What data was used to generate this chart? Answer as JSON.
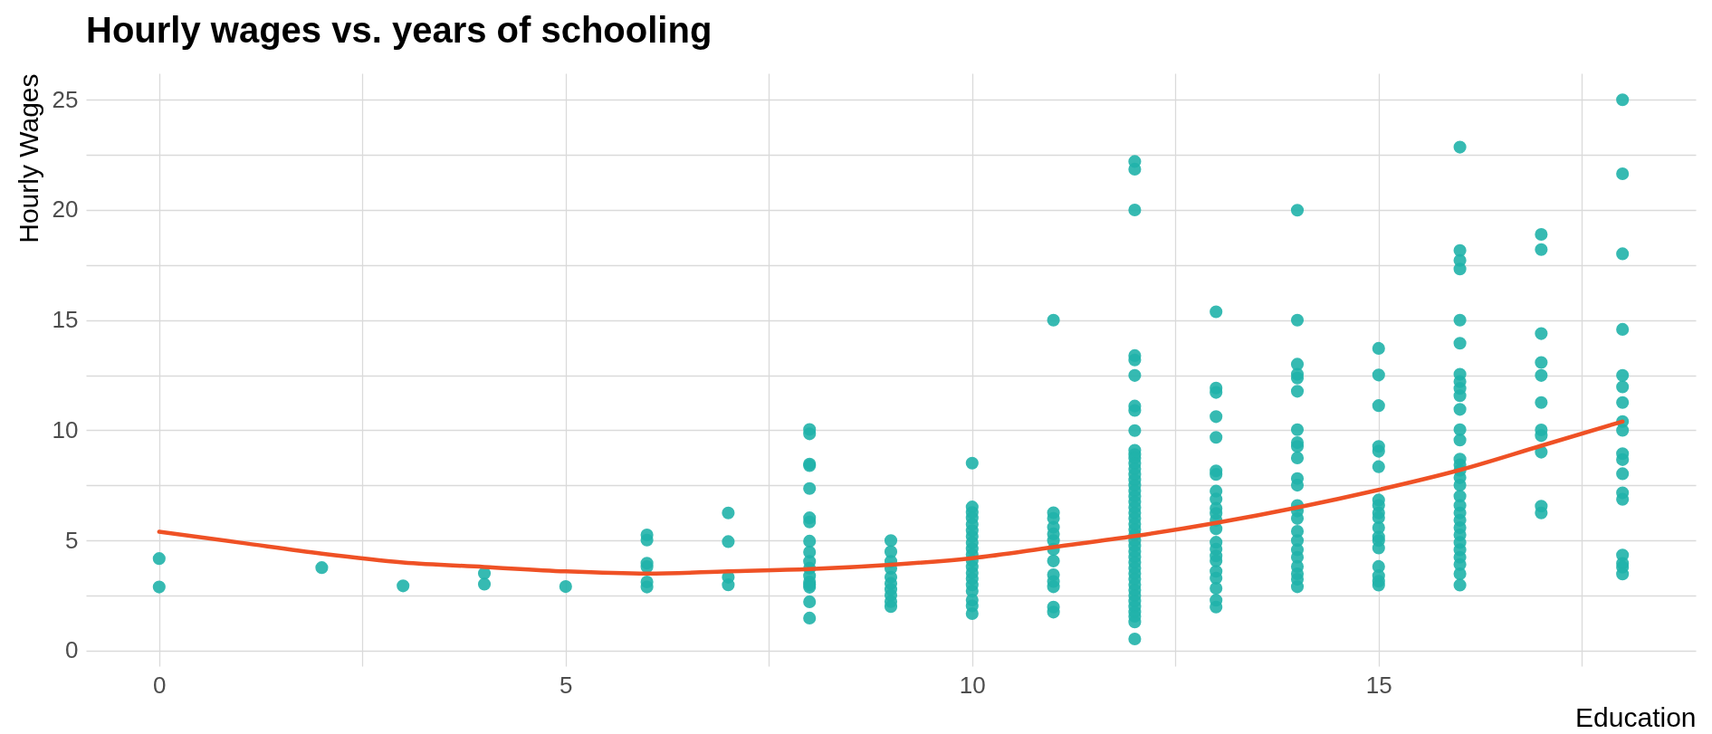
{
  "chart_data": {
    "type": "scatter",
    "title": "Hourly wages vs. years of schooling",
    "xlabel": "Education",
    "ylabel": "Hourly Wages",
    "xlim": [
      -0.9,
      18.9
    ],
    "ylim": [
      -0.7,
      26.2
    ],
    "xticks": [
      0,
      {
        "value": 2.5,
        "label": null
      },
      5,
      {
        "value": 7.5,
        "label": null
      },
      10,
      {
        "value": 12.5,
        "label": null
      },
      15,
      {
        "value": 17.5,
        "label": null
      }
    ],
    "yticks": [
      0,
      {
        "value": 2.5,
        "label": null
      },
      5,
      {
        "value": 7.5,
        "label": null
      },
      10,
      {
        "value": 12.5,
        "label": null
      },
      15,
      {
        "value": 17.5,
        "label": null
      },
      20,
      {
        "value": 22.5,
        "label": null
      },
      25
    ],
    "grid": true,
    "series": [
      {
        "marker": "circle",
        "color": "#20b2aa",
        "x": [
          0,
          0,
          2,
          3,
          4,
          4,
          5,
          6,
          6,
          6,
          6,
          6,
          6,
          7,
          7,
          7,
          7,
          8,
          8,
          8,
          8,
          8,
          8,
          8,
          8,
          8,
          8,
          8,
          8,
          8,
          8,
          8,
          8,
          8,
          9,
          9,
          9,
          9,
          9,
          9,
          9,
          9,
          9,
          9,
          10,
          10,
          10,
          10,
          10,
          10,
          10,
          10,
          10,
          10,
          10,
          10,
          10,
          10,
          10,
          10,
          10,
          10,
          10,
          11,
          11,
          11,
          11,
          11,
          11,
          11,
          11,
          11,
          11,
          11,
          11,
          11,
          12,
          12,
          12,
          12,
          12,
          12,
          12,
          12,
          12,
          12,
          12,
          12,
          12,
          12,
          12,
          12,
          12,
          12,
          12,
          12,
          12,
          12,
          12,
          12,
          12,
          12,
          12,
          12,
          12,
          12,
          12,
          12,
          12,
          12,
          12,
          12,
          12,
          12,
          12,
          12,
          12,
          12,
          12,
          13,
          13,
          13,
          13,
          13,
          13,
          13,
          13,
          13,
          13,
          13,
          13,
          13,
          13,
          13,
          13,
          13,
          13,
          13,
          13,
          13,
          13,
          14,
          14,
          14,
          14,
          14,
          14,
          14,
          14,
          14,
          14,
          14,
          14,
          14,
          14,
          14,
          14,
          14,
          14,
          14,
          14,
          14,
          14,
          14,
          15,
          15,
          15,
          15,
          15,
          15,
          15,
          15,
          15,
          15,
          15,
          15,
          15,
          15,
          15,
          15,
          15,
          15,
          16,
          16,
          16,
          16,
          16,
          16,
          16,
          16,
          16,
          16,
          16,
          16,
          16,
          16,
          16,
          16,
          16,
          16,
          16,
          16,
          16,
          16,
          16,
          16,
          16,
          16,
          16,
          16,
          16,
          16,
          17,
          17,
          17,
          17,
          17,
          17,
          17,
          17,
          17,
          17,
          17,
          18,
          18,
          18,
          18,
          18,
          18,
          18,
          18,
          18,
          18,
          18,
          18,
          18,
          18,
          18,
          18,
          18,
          18
        ],
        "values": [
          4.18,
          2.89,
          3.77,
          2.94,
          3.51,
          3.02,
          2.91,
          5.25,
          5.02,
          3.97,
          3.81,
          3.12,
          2.89,
          6.25,
          4.95,
          3.33,
          2.99,
          10.04,
          9.84,
          8.47,
          8.4,
          7.36,
          6.03,
          5.84,
          4.97,
          4.47,
          4.05,
          3.74,
          3.4,
          3.12,
          2.99,
          2.88,
          2.22,
          1.48,
          5.0,
          4.49,
          4.05,
          3.74,
          3.33,
          3.05,
          2.78,
          2.51,
          2.23,
          2.0,
          8.51,
          6.52,
          6.27,
          6.03,
          5.73,
          5.45,
          5.18,
          4.9,
          4.63,
          4.36,
          4.08,
          3.81,
          3.53,
          3.26,
          2.99,
          2.71,
          2.3,
          2.03,
          1.68,
          15.0,
          6.26,
          6.0,
          5.6,
          5.3,
          5.0,
          4.6,
          4.07,
          3.45,
          3.14,
          2.9,
          1.98,
          1.75,
          22.2,
          21.85,
          20.0,
          13.39,
          13.19,
          12.49,
          11.1,
          10.9,
          9.99,
          9.09,
          8.9,
          8.75,
          8.5,
          8.25,
          8.0,
          7.75,
          7.5,
          7.25,
          7.0,
          6.75,
          6.5,
          6.25,
          6.0,
          5.75,
          5.5,
          5.25,
          5.0,
          4.75,
          4.5,
          4.25,
          4.0,
          3.75,
          3.5,
          3.25,
          3.0,
          2.75,
          2.5,
          2.25,
          2.0,
          1.75,
          1.56,
          1.3,
          0.53,
          15.38,
          11.92,
          11.72,
          10.62,
          9.68,
          8.16,
          8.0,
          7.24,
          6.88,
          6.46,
          6.23,
          5.92,
          5.53,
          4.92,
          4.61,
          4.3,
          4.07,
          3.6,
          3.29,
          2.83,
          2.29,
          1.98,
          19.99,
          15.0,
          13.0,
          12.54,
          12.37,
          11.77,
          10.03,
          9.44,
          9.27,
          8.75,
          7.81,
          7.51,
          6.59,
          6.34,
          6.0,
          5.42,
          5.0,
          4.58,
          4.24,
          3.82,
          3.49,
          3.24,
          2.9,
          13.72,
          12.51,
          11.12,
          9.27,
          9.05,
          8.35,
          6.84,
          6.59,
          6.25,
          6.04,
          5.58,
          5.16,
          5.0,
          4.66,
          3.82,
          3.4,
          3.15,
          2.98,
          22.85,
          18.16,
          17.71,
          17.32,
          15.0,
          13.95,
          12.54,
          12.21,
          11.9,
          11.57,
          10.95,
          10.03,
          9.56,
          8.69,
          8.43,
          8.18,
          7.85,
          7.51,
          7.01,
          6.59,
          6.25,
          5.92,
          5.58,
          5.25,
          4.91,
          4.58,
          4.24,
          3.91,
          3.49,
          2.98,
          18.89,
          18.2,
          14.39,
          13.08,
          12.49,
          11.26,
          10.02,
          9.76,
          9.01,
          6.56,
          6.25,
          25.0,
          21.64,
          18.01,
          14.58,
          12.49,
          11.97,
          11.26,
          10.4,
          10.0,
          8.94,
          8.67,
          8.03,
          7.16,
          6.87,
          4.34,
          3.96,
          3.79,
          3.48
        ]
      },
      {
        "type": "line",
        "line_style": "solid",
        "color": "#ef5125",
        "x": [
          0,
          1,
          2,
          3,
          4,
          5,
          6,
          7,
          8,
          9,
          10,
          11,
          12,
          13,
          14,
          15,
          16,
          17,
          18
        ],
        "values": [
          5.4,
          4.9,
          4.4,
          4.0,
          3.8,
          3.6,
          3.5,
          3.6,
          3.7,
          3.9,
          4.2,
          4.7,
          5.2,
          5.8,
          6.5,
          7.3,
          8.2,
          9.3,
          10.4
        ]
      }
    ]
  }
}
